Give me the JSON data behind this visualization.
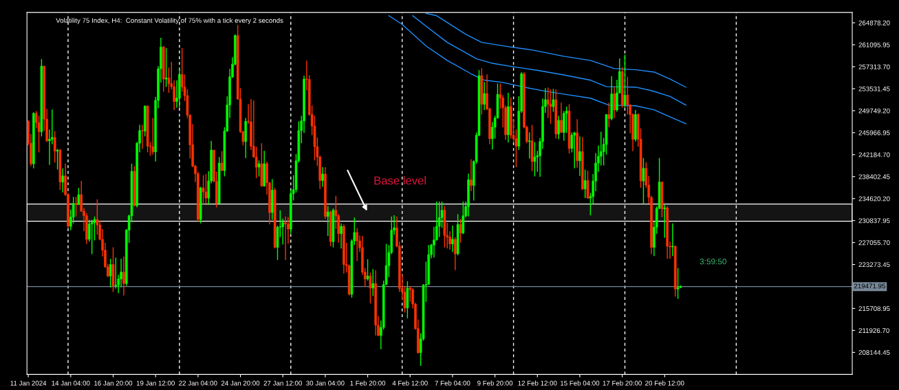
{
  "chart_data": {
    "type": "candlestick",
    "title": "Volatility 75 Index, H4:  Constant Volatility of 75% with a tick every 2 seconds",
    "colors": [
      "#ff3300",
      "#ff3300",
      "#00ff00",
      "#ff3300",
      "#ff3300",
      "#00ff00",
      "#ff3300",
      "#ff3300",
      "#00ff00",
      "#00ff00",
      "#ff3300",
      "#00ff00",
      "#ff3300",
      "#00ff00",
      "#ff3300",
      "#ff3300",
      "#00ff00",
      "#00ff00",
      "#ff3300",
      "#00ff00",
      "#ff3300",
      "#ff3300",
      "#ff3300",
      "#00ff00",
      "#00ff00",
      "#00ff00",
      "#ff3300",
      "#ff3300",
      "#ff3300",
      "#ff3300",
      "#ff3300",
      "#00ff00",
      "#ff3300",
      "#00ff00",
      "#00ff00",
      "#00ff00",
      "#ff3300",
      "#00ff00",
      "#00ff00",
      "#00ff00",
      "#ff3300",
      "#00ff00",
      "#00ff00",
      "#ff3300",
      "#00ff00",
      "#ff3300",
      "#ff3300",
      "#ff3300",
      "#00ff00",
      "#00ff00",
      "#00ff00",
      "#ff3300",
      "#00ff00",
      "#ff3300",
      "#ff3300",
      "#ff3300",
      "#00ff00",
      "#00ff00",
      "#ff3300",
      "#ff3300",
      "#ff3300",
      "#ff3300",
      "#ff3300",
      "#ff3300",
      "#ff3300",
      "#00ff00",
      "#ff3300",
      "#ff3300",
      "#00ff00",
      "#00ff00",
      "#ff3300",
      "#ff3300",
      "#00ff00",
      "#ff3300",
      "#00ff00",
      "#00ff00",
      "#00ff00",
      "#00ff00",
      "#00ff00",
      "#ff3300",
      "#ff3300",
      "#ff3300",
      "#00ff00",
      "#ff3300",
      "#ff3300",
      "#ff3300",
      "#ff3300",
      "#00ff00",
      "#ff3300",
      "#00ff00",
      "#ff3300",
      "#ff3300",
      "#00ff00",
      "#ff3300",
      "#00ff00",
      "#00ff00",
      "#00ff00",
      "#ff3300",
      "#ff3300",
      "#00ff00",
      "#00ff00",
      "#00ff00",
      "#00ff00",
      "#00ff00",
      "#00ff00",
      "#ff3300",
      "#ff3300",
      "#ff3300",
      "#ff3300",
      "#ff3300",
      "#ff3300",
      "#00ff00",
      "#ff3300",
      "#00ff00",
      "#ff3300",
      "#00ff00",
      "#ff3300",
      "#ff3300",
      "#00ff00",
      "#ff3300",
      "#ff3300",
      "#ff3300",
      "#00ff00",
      "#00ff00",
      "#ff3300",
      "#ff3300",
      "#ff3300",
      "#ff3300",
      "#00ff00",
      "#ff3300",
      "#00ff00",
      "#ff3300",
      "#ff3300",
      "#00ff00",
      "#00ff00",
      "#00ff00",
      "#00ff00",
      "#00ff00",
      "#00ff00",
      "#ff3300",
      "#ff3300",
      "#ff3300",
      "#ff3300",
      "#00ff00",
      "#ff3300",
      "#ff3300",
      "#ff3300",
      "#ff3300",
      "#00ff00",
      "#00ff00",
      "#00ff00",
      "#00ff00",
      "#00ff00",
      "#00ff00",
      "#00ff00",
      "#00ff00",
      "#00ff00",
      "#ff3300",
      "#ff3300",
      "#ff3300",
      "#00ff00",
      "#ff3300",
      "#00ff00",
      "#ff3300",
      "#00ff00",
      "#00ff00",
      "#00ff00",
      "#ff3300",
      "#00ff00",
      "#00ff00",
      "#00ff00",
      "#ff3300",
      "#00ff00",
      "#ff3300",
      "#ff3300",
      "#00ff00",
      "#00ff00",
      "#00ff00",
      "#ff3300",
      "#ff3300",
      "#ff3300",
      "#00ff00",
      "#ff3300",
      "#ff3300",
      "#ff3300",
      "#00ff00",
      "#00ff00",
      "#ff3300",
      "#ff3300",
      "#00ff00",
      "#ff3300",
      "#00ff00",
      "#00ff00",
      "#00ff00",
      "#00ff00",
      "#00ff00",
      "#ff3300",
      "#ff3300",
      "#00ff00",
      "#ff3300",
      "#00ff00",
      "#ff3300",
      "#00ff00",
      "#00ff00",
      "#ff3300",
      "#00ff00",
      "#00ff00",
      "#ff3300",
      "#00ff00",
      "#ff3300",
      "#00ff00",
      "#ff3300",
      "#00ff00",
      "#00ff00",
      "#00ff00",
      "#00ff00",
      "#00ff00",
      "#00ff00",
      "#00ff00",
      "#ff3300",
      "#00ff00",
      "#ff3300",
      "#00ff00",
      "#00ff00",
      "#ff3300",
      "#00ff00",
      "#ff3300",
      "#ff3300",
      "#ff3300",
      "#00ff00",
      "#ff3300",
      "#ff3300",
      "#00ff00",
      "#ff3300",
      "#ff3300",
      "#ff3300",
      "#00ff00",
      "#00ff00",
      "#00ff00",
      "#ff3300",
      "#00ff00",
      "#ff3300",
      "#ff3300",
      "#00ff00",
      "#ff3300",
      "#00ff00",
      "#00ff00"
    ],
    "x": [
      "2024-01-11T12:00",
      "2024-01-11T16:00",
      "2024-01-11T20:00",
      "2024-01-12T00:00",
      "2024-01-12T04:00",
      "2024-01-12T08:00",
      "2024-01-12T12:00",
      "2024-01-12T16:00",
      "2024-01-12T20:00",
      "2024-01-13T00:00",
      "2024-01-13T04:00",
      "2024-01-13T08:00",
      "2024-01-13T12:00",
      "2024-01-13T16:00",
      "2024-01-13T20:00",
      "2024-01-14T00:00",
      "2024-01-14T04:00",
      "2024-01-14T08:00",
      "2024-01-14T12:00",
      "2024-01-14T16:00",
      "2024-01-14T20:00",
      "2024-01-15T00:00",
      "2024-01-15T04:00",
      "2024-01-15T08:00",
      "2024-01-15T12:00",
      "2024-01-15T16:00",
      "2024-01-15T20:00",
      "2024-01-16T00:00",
      "2024-01-16T04:00",
      "2024-01-16T08:00",
      "2024-01-16T12:00",
      "2024-01-16T16:00",
      "2024-01-16T20:00",
      "2024-01-17T00:00",
      "2024-01-17T04:00",
      "2024-01-17T08:00",
      "2024-01-17T12:00",
      "2024-01-17T16:00",
      "2024-01-17T20:00",
      "2024-01-18T00:00",
      "2024-01-18T04:00",
      "2024-01-18T08:00",
      "2024-01-18T12:00",
      "2024-01-18T16:00",
      "2024-01-18T20:00",
      "2024-01-19T00:00",
      "2024-01-19T04:00",
      "2024-01-19T08:00",
      "2024-01-19T12:00",
      "2024-01-19T16:00",
      "2024-01-19T20:00",
      "2024-01-20T00:00",
      "2024-01-20T04:00",
      "2024-01-20T08:00",
      "2024-01-20T12:00",
      "2024-01-20T16:00",
      "2024-01-20T20:00",
      "2024-01-21T00:00",
      "2024-01-21T04:00",
      "2024-01-21T08:00",
      "2024-01-21T12:00",
      "2024-01-21T16:00",
      "2024-01-21T20:00",
      "2024-01-22T00:00",
      "2024-01-22T04:00",
      "2024-01-22T08:00",
      "2024-01-22T12:00",
      "2024-01-22T16:00",
      "2024-01-22T20:00",
      "2024-01-23T00:00",
      "2024-01-23T04:00",
      "2024-01-23T08:00",
      "2024-01-23T12:00",
      "2024-01-23T16:00",
      "2024-01-23T20:00",
      "2024-01-24T00:00",
      "2024-01-24T04:00",
      "2024-01-24T08:00",
      "2024-01-24T12:00",
      "2024-01-24T16:00",
      "2024-01-24T20:00",
      "2024-01-25T00:00",
      "2024-01-25T04:00",
      "2024-01-25T08:00",
      "2024-01-25T12:00",
      "2024-01-25T16:00",
      "2024-01-25T20:00",
      "2024-01-26T00:00",
      "2024-01-26T04:00",
      "2024-01-26T08:00",
      "2024-01-26T12:00",
      "2024-01-26T16:00",
      "2024-01-26T20:00",
      "2024-01-27T00:00",
      "2024-01-27T04:00",
      "2024-01-27T08:00",
      "2024-01-27T12:00",
      "2024-01-27T16:00",
      "2024-01-27T20:00",
      "2024-01-28T00:00",
      "2024-01-28T04:00",
      "2024-01-28T08:00",
      "2024-01-28T12:00",
      "2024-01-28T16:00",
      "2024-01-28T20:00",
      "2024-01-29T00:00",
      "2024-01-29T04:00",
      "2024-01-29T08:00",
      "2024-01-29T12:00",
      "2024-01-29T16:00",
      "2024-01-29T20:00",
      "2024-01-30T00:00",
      "2024-01-30T04:00",
      "2024-01-30T08:00",
      "2024-01-30T12:00",
      "2024-01-30T16:00",
      "2024-01-30T20:00",
      "2024-01-31T00:00",
      "2024-01-31T04:00",
      "2024-01-31T08:00",
      "2024-01-31T12:00",
      "2024-01-31T16:00",
      "2024-01-31T20:00",
      "2024-02-01T00:00",
      "2024-02-01T04:00",
      "2024-02-01T08:00",
      "2024-02-01T12:00",
      "2024-02-01T16:00",
      "2024-02-01T20:00",
      "2024-02-02T00:00",
      "2024-02-02T04:00",
      "2024-02-02T08:00",
      "2024-02-02T12:00",
      "2024-02-02T16:00",
      "2024-02-02T20:00",
      "2024-02-03T00:00",
      "2024-02-03T04:00",
      "2024-02-03T08:00",
      "2024-02-03T12:00",
      "2024-02-03T16:00",
      "2024-02-03T20:00",
      "2024-02-04T00:00",
      "2024-02-04T04:00",
      "2024-02-04T08:00",
      "2024-02-04T12:00",
      "2024-02-04T16:00",
      "2024-02-04T20:00",
      "2024-02-05T00:00",
      "2024-02-05T04:00",
      "2024-02-05T08:00",
      "2024-02-05T12:00",
      "2024-02-05T16:00",
      "2024-02-05T20:00",
      "2024-02-06T00:00",
      "2024-02-06T04:00",
      "2024-02-06T08:00",
      "2024-02-06T12:00",
      "2024-02-06T16:00",
      "2024-02-06T20:00",
      "2024-02-07T00:00",
      "2024-02-07T04:00",
      "2024-02-07T08:00",
      "2024-02-07T12:00",
      "2024-02-07T16:00",
      "2024-02-07T20:00",
      "2024-02-08T00:00",
      "2024-02-08T04:00",
      "2024-02-08T08:00",
      "2024-02-08T12:00",
      "2024-02-08T16:00",
      "2024-02-08T20:00",
      "2024-02-09T00:00",
      "2024-02-09T04:00",
      "2024-02-09T08:00",
      "2024-02-09T12:00",
      "2024-02-09T16:00",
      "2024-02-09T20:00",
      "2024-02-10T00:00",
      "2024-02-10T04:00",
      "2024-02-10T08:00",
      "2024-02-10T12:00",
      "2024-02-10T16:00",
      "2024-02-10T20:00",
      "2024-02-11T00:00",
      "2024-02-11T04:00",
      "2024-02-11T08:00",
      "2024-02-11T12:00",
      "2024-02-11T16:00",
      "2024-02-11T20:00",
      "2024-02-12T00:00",
      "2024-02-12T04:00",
      "2024-02-12T08:00",
      "2024-02-12T12:00",
      "2024-02-12T16:00",
      "2024-02-12T20:00",
      "2024-02-13T00:00",
      "2024-02-13T04:00",
      "2024-02-13T08:00",
      "2024-02-13T12:00",
      "2024-02-13T16:00",
      "2024-02-13T20:00",
      "2024-02-14T00:00",
      "2024-02-14T04:00",
      "2024-02-14T08:00",
      "2024-02-14T12:00",
      "2024-02-14T16:00",
      "2024-02-14T20:00",
      "2024-02-15T00:00",
      "2024-02-15T04:00",
      "2024-02-15T08:00",
      "2024-02-15T12:00",
      "2024-02-15T16:00",
      "2024-02-15T20:00",
      "2024-02-16T00:00",
      "2024-02-16T04:00",
      "2024-02-16T08:00",
      "2024-02-16T12:00",
      "2024-02-16T16:00",
      "2024-02-16T20:00",
      "2024-02-17T00:00",
      "2024-02-17T04:00",
      "2024-02-17T08:00",
      "2024-02-17T12:00",
      "2024-02-17T16:00",
      "2024-02-17T20:00",
      "2024-02-18T00:00",
      "2024-02-18T04:00",
      "2024-02-18T08:00",
      "2024-02-18T12:00",
      "2024-02-18T16:00",
      "2024-02-18T20:00",
      "2024-02-19T00:00",
      "2024-02-19T04:00",
      "2024-02-19T08:00",
      "2024-02-19T12:00",
      "2024-02-19T16:00",
      "2024-02-19T20:00",
      "2024-02-20T00:00",
      "2024-02-20T04:00",
      "2024-02-20T08:00",
      "2024-02-20T12:00",
      "2024-02-20T16:00",
      "2024-02-20T20:00",
      "2024-02-21T00:00",
      "2024-02-21T04:00",
      "2024-02-21T08:00",
      "2024-02-21T12:00"
    ],
    "ohlc": [
      [
        247900,
        248090,
        243760,
        244150
      ],
      [
        244150,
        245730,
        240210,
        240610
      ],
      [
        240610,
        249470,
        239820,
        249280
      ],
      [
        249280,
        249670,
        246720,
        247700
      ],
      [
        247700,
        248880,
        242580,
        246120
      ],
      [
        246120,
        258610,
        245340,
        257430
      ],
      [
        257430,
        257430,
        246320,
        248290
      ],
      [
        248290,
        250060,
        244350,
        244550
      ],
      [
        244550,
        246520,
        240410,
        244820
      ],
      [
        244820,
        249950,
        243960,
        245140
      ],
      [
        245140,
        246240,
        240800,
        242780
      ],
      [
        242780,
        243170,
        239620,
        242970
      ],
      [
        242970,
        243170,
        236080,
        237460
      ],
      [
        237460,
        239820,
        235680,
        238520
      ],
      [
        238520,
        240610,
        235090,
        235290
      ],
      [
        235290,
        235490,
        229580,
        229850
      ],
      [
        229850,
        232730,
        229180,
        231430
      ],
      [
        231430,
        234900,
        230360,
        233790
      ],
      [
        233790,
        234900,
        231550,
        233630
      ],
      [
        233630,
        236470,
        233520,
        235290
      ],
      [
        235290,
        237650,
        232330,
        232450
      ],
      [
        232450,
        233000,
        228990,
        231660
      ],
      [
        231660,
        232140,
        226820,
        227610
      ],
      [
        227610,
        230960,
        227210,
        230250
      ],
      [
        230250,
        230960,
        225050,
        230480
      ],
      [
        230480,
        231550,
        227410,
        231030
      ],
      [
        231030,
        234500,
        228390,
        230090
      ],
      [
        230090,
        230760,
        227410,
        227610
      ],
      [
        227610,
        229380,
        224650,
        225750
      ],
      [
        225750,
        227020,
        222680,
        222880
      ],
      [
        222880,
        223390,
        221100,
        221300
      ],
      [
        221300,
        224260,
        219330,
        223270
      ],
      [
        223270,
        226230,
        218540,
        219610
      ],
      [
        219610,
        224450,
        219140,
        219730
      ],
      [
        219730,
        221500,
        218350,
        220790
      ],
      [
        220790,
        224260,
        219330,
        221970
      ],
      [
        221970,
        224650,
        217950,
        220000
      ],
      [
        220000,
        229380,
        219610,
        229180
      ],
      [
        229180,
        231820,
        227020,
        231660
      ],
      [
        231660,
        240610,
        230560,
        239310
      ],
      [
        239310,
        240210,
        233320,
        233400
      ],
      [
        233400,
        244350,
        233120,
        244150
      ],
      [
        244150,
        247310,
        242580,
        246320
      ],
      [
        246320,
        247310,
        243170,
        246240
      ],
      [
        246240,
        250660,
        245340,
        250540
      ],
      [
        250540,
        250660,
        242580,
        243640
      ],
      [
        243640,
        244350,
        241990,
        243560
      ],
      [
        243560,
        248490,
        242180,
        242660
      ],
      [
        242660,
        252150,
        241000,
        251520
      ],
      [
        251520,
        257430,
        250180,
        256960
      ],
      [
        256960,
        262280,
        254600,
        260700
      ],
      [
        260700,
        260900,
        253020,
        255190
      ],
      [
        255190,
        260510,
        253810,
        255380
      ],
      [
        255380,
        257160,
        252820,
        254400
      ],
      [
        254400,
        258140,
        253410,
        253890
      ],
      [
        253890,
        254990,
        249870,
        251330
      ],
      [
        251330,
        254990,
        250260,
        251920
      ],
      [
        251920,
        257160,
        250260,
        255970
      ],
      [
        255970,
        260510,
        253020,
        253810
      ],
      [
        253810,
        255970,
        251440,
        252350
      ],
      [
        252350,
        253410,
        248490,
        249000
      ],
      [
        249000,
        249080,
        241510,
        243880
      ],
      [
        243880,
        247420,
        240020,
        240210
      ],
      [
        240210,
        240410,
        237460,
        238910
      ],
      [
        238910,
        239230,
        230560,
        231030
      ],
      [
        231030,
        236670,
        230360,
        236470
      ],
      [
        236470,
        238640,
        233520,
        235760
      ],
      [
        235760,
        238840,
        233710,
        234700
      ],
      [
        234700,
        239310,
        233520,
        237650
      ],
      [
        237650,
        244550,
        237260,
        242970
      ],
      [
        242970,
        242970,
        237460,
        237570
      ],
      [
        237570,
        239230,
        233120,
        233790
      ],
      [
        233790,
        241790,
        233520,
        240730
      ],
      [
        240730,
        242780,
        239310,
        239430
      ],
      [
        239430,
        246910,
        238440,
        246240
      ],
      [
        246240,
        252230,
        246120,
        250730
      ],
      [
        250730,
        256960,
        248490,
        255580
      ],
      [
        255580,
        258930,
        255380,
        257750
      ],
      [
        257750,
        262870,
        257550,
        262670
      ],
      [
        262670,
        264520,
        251640,
        251760
      ],
      [
        251760,
        253610,
        245930,
        246120
      ],
      [
        246120,
        246320,
        243760,
        244430
      ],
      [
        244430,
        248490,
        241590,
        247900
      ],
      [
        247900,
        250850,
        247500,
        247820
      ],
      [
        247820,
        251760,
        242970,
        243640
      ],
      [
        243640,
        251520,
        241670,
        241790
      ],
      [
        241790,
        243560,
        238130,
        240020
      ],
      [
        240020,
        241200,
        238440,
        240610
      ],
      [
        240610,
        244150,
        236670,
        236790
      ],
      [
        236790,
        242850,
        236670,
        240610
      ],
      [
        240610,
        241000,
        235290,
        237340
      ],
      [
        237340,
        237460,
        230170,
        232220
      ],
      [
        232220,
        237970,
        230960,
        236080
      ],
      [
        236080,
        236470,
        226030,
        226230
      ],
      [
        226230,
        229970,
        224060,
        229690
      ],
      [
        229690,
        232610,
        228000,
        229770
      ],
      [
        229770,
        231150,
        226700,
        230480
      ],
      [
        230480,
        231550,
        224060,
        230250
      ],
      [
        230250,
        231430,
        226820,
        229380
      ],
      [
        229380,
        236080,
        228590,
        235490
      ],
      [
        235490,
        238640,
        234300,
        236160
      ],
      [
        236160,
        242300,
        235680,
        241120
      ],
      [
        241120,
        247900,
        240800,
        246320
      ],
      [
        246320,
        248880,
        244150,
        247980
      ],
      [
        247980,
        255780,
        245930,
        255190
      ],
      [
        255190,
        258340,
        253220,
        255110
      ],
      [
        255110,
        255860,
        248880,
        249080
      ],
      [
        249080,
        250660,
        245530,
        247110
      ],
      [
        247110,
        248880,
        241200,
        243560
      ],
      [
        243560,
        245140,
        240210,
        241790
      ],
      [
        241790,
        241990,
        236270,
        237730
      ],
      [
        237730,
        240020,
        236670,
        238840
      ],
      [
        238840,
        240020,
        231150,
        231550
      ],
      [
        231550,
        233320,
        228200,
        232330
      ],
      [
        232330,
        232530,
        226420,
        227210
      ],
      [
        227210,
        232930,
        226230,
        232610
      ],
      [
        232610,
        235090,
        229380,
        231660
      ],
      [
        231660,
        231940,
        227020,
        228590
      ],
      [
        228590,
        230360,
        226030,
        229850
      ],
      [
        229850,
        230170,
        221700,
        223270
      ],
      [
        223270,
        227020,
        221890,
        223080
      ],
      [
        223080,
        223270,
        217950,
        218150
      ],
      [
        218150,
        227610,
        217560,
        227330
      ],
      [
        227330,
        231350,
        226620,
        228790
      ],
      [
        228790,
        229580,
        223860,
        227330
      ],
      [
        227330,
        228280,
        225440,
        226150
      ],
      [
        226150,
        228200,
        221500,
        221970
      ],
      [
        221970,
        222680,
        219530,
        220790
      ],
      [
        220790,
        224180,
        220510,
        221300
      ],
      [
        221300,
        221890,
        216570,
        219210
      ],
      [
        219210,
        222480,
        217870,
        220000
      ],
      [
        220000,
        222290,
        211060,
        212830
      ],
      [
        212830,
        214410,
        210940,
        211060
      ],
      [
        211060,
        213620,
        208690,
        212440
      ],
      [
        212440,
        220510,
        212040,
        219840
      ],
      [
        219840,
        226820,
        219730,
        223080
      ],
      [
        223080,
        226620,
        221100,
        225360
      ],
      [
        225360,
        231550,
        225050,
        229180
      ],
      [
        229180,
        231740,
        228390,
        229580
      ],
      [
        229580,
        231550,
        226230,
        226420
      ],
      [
        226420,
        227210,
        218540,
        219140
      ],
      [
        219140,
        221500,
        217170,
        218540
      ],
      [
        218540,
        219530,
        215000,
        215790
      ],
      [
        215790,
        220400,
        214010,
        219210
      ],
      [
        219210,
        219530,
        216850,
        218940
      ],
      [
        218940,
        219210,
        215670,
        216460
      ],
      [
        216460,
        216690,
        212040,
        212240
      ],
      [
        212240,
        213820,
        207910,
        208100
      ],
      [
        208100,
        211450,
        205820,
        210470
      ],
      [
        210470,
        219920,
        210150,
        219730
      ],
      [
        219730,
        223780,
        216850,
        219840
      ],
      [
        219840,
        226620,
        219840,
        224970
      ],
      [
        224970,
        226820,
        224340,
        226620
      ],
      [
        226620,
        229770,
        224450,
        227490
      ],
      [
        227490,
        234110,
        227410,
        229850
      ],
      [
        229850,
        234110,
        228000,
        231350
      ],
      [
        231350,
        234110,
        229580,
        232610
      ],
      [
        232610,
        233320,
        226230,
        228280
      ],
      [
        228280,
        230480,
        226030,
        228000
      ],
      [
        228000,
        228990,
        225830,
        226820
      ],
      [
        226820,
        229970,
        225440,
        227610
      ],
      [
        227610,
        228000,
        222290,
        225120
      ],
      [
        225120,
        231940,
        224850,
        230170
      ],
      [
        230170,
        231150,
        227020,
        228670
      ],
      [
        228670,
        234110,
        228510,
        231660
      ],
      [
        231660,
        234110,
        231350,
        233240
      ],
      [
        233240,
        238910,
        231550,
        237850
      ],
      [
        237850,
        241400,
        235880,
        236870
      ],
      [
        236870,
        241200,
        234300,
        241000
      ],
      [
        241000,
        246010,
        240610,
        245530
      ],
      [
        245530,
        256760,
        245340,
        255780
      ],
      [
        255780,
        257040,
        249080,
        250850
      ],
      [
        250850,
        254670,
        249870,
        252700
      ],
      [
        252700,
        255970,
        249870,
        250060
      ],
      [
        250060,
        250260,
        243960,
        244940
      ],
      [
        244940,
        247820,
        243090,
        246910
      ],
      [
        246910,
        248880,
        244940,
        248490
      ],
      [
        248490,
        254400,
        248370,
        252550
      ],
      [
        252550,
        254400,
        250060,
        251920
      ],
      [
        251920,
        252430,
        246910,
        250260
      ],
      [
        250260,
        250660,
        244750,
        245610
      ],
      [
        245610,
        252820,
        244270,
        250460
      ],
      [
        250460,
        252030,
        244940,
        245530
      ],
      [
        245530,
        248090,
        244350,
        244940
      ],
      [
        244940,
        246520,
        240020,
        243640
      ],
      [
        243640,
        252230,
        242970,
        249670
      ],
      [
        249670,
        256370,
        249390,
        256090
      ],
      [
        256090,
        256370,
        246720,
        246910
      ],
      [
        246910,
        247190,
        244150,
        244430
      ],
      [
        244430,
        246010,
        241510,
        244550
      ],
      [
        244550,
        247310,
        239310,
        241000
      ],
      [
        241000,
        244350,
        238440,
        241790
      ],
      [
        241790,
        242850,
        239230,
        241990
      ],
      [
        241990,
        245060,
        238360,
        244430
      ],
      [
        244430,
        251840,
        243170,
        250460
      ],
      [
        250460,
        253610,
        249390,
        251640
      ],
      [
        251640,
        253730,
        248490,
        250850
      ],
      [
        250850,
        253410,
        247500,
        250460
      ],
      [
        250460,
        253490,
        249550,
        251640
      ],
      [
        251640,
        253410,
        244940,
        245730
      ],
      [
        245730,
        248880,
        244820,
        248090
      ],
      [
        248090,
        251130,
        245930,
        246010
      ],
      [
        246010,
        249670,
        244550,
        249280
      ],
      [
        249280,
        250460,
        245930,
        249670
      ],
      [
        249670,
        250850,
        242380,
        243250
      ],
      [
        243250,
        246010,
        242580,
        245530
      ],
      [
        245530,
        246120,
        239820,
        245930
      ],
      [
        245930,
        248290,
        239940,
        241120
      ],
      [
        241120,
        245340,
        238520,
        242700
      ],
      [
        242700,
        245220,
        236080,
        236270
      ],
      [
        236270,
        239620,
        234700,
        237730
      ],
      [
        237730,
        239430,
        234580,
        234700
      ],
      [
        234700,
        235600,
        231740,
        234970
      ],
      [
        234970,
        238840,
        233710,
        237650
      ],
      [
        237650,
        242460,
        235880,
        240730
      ],
      [
        240730,
        243760,
        239230,
        241910
      ],
      [
        241910,
        246120,
        240330,
        242700
      ],
      [
        242700,
        245060,
        240330,
        243960
      ],
      [
        243960,
        249160,
        242180,
        249080
      ],
      [
        249080,
        251130,
        246910,
        248370
      ],
      [
        248370,
        255700,
        248090,
        252630
      ],
      [
        252630,
        253890,
        248490,
        249870
      ],
      [
        249870,
        255070,
        249550,
        252820
      ],
      [
        252820,
        258730,
        252700,
        256490
      ],
      [
        256490,
        257270,
        250260,
        250730
      ],
      [
        250730,
        259400,
        250260,
        252430
      ],
      [
        252430,
        255580,
        249080,
        250730
      ],
      [
        250730,
        250850,
        245850,
        249080
      ],
      [
        249080,
        249280,
        242780,
        244820
      ],
      [
        244820,
        249870,
        244430,
        249080
      ],
      [
        249080,
        249280,
        243560,
        244820
      ],
      [
        244820,
        246720,
        236470,
        237650
      ],
      [
        237650,
        241590,
        233790,
        239820
      ],
      [
        239820,
        240880,
        236470,
        236940
      ],
      [
        236940,
        238520,
        233790,
        234820
      ],
      [
        234820,
        235090,
        225050,
        226230
      ],
      [
        226230,
        230640,
        224730,
        229690
      ],
      [
        229690,
        233240,
        228590,
        232930
      ],
      [
        232930,
        241590,
        232850,
        237460
      ],
      [
        237460,
        237570,
        231430,
        232850
      ],
      [
        232850,
        233520,
        227880,
        233000
      ],
      [
        233000,
        233320,
        224260,
        226420
      ],
      [
        226420,
        227210,
        224260,
        226310
      ],
      [
        226310,
        230360,
        224730,
        226420
      ],
      [
        226420,
        226540,
        217760,
        219060
      ],
      [
        219060,
        222680,
        217360,
        219300
      ],
      [
        219300,
        219700,
        219250,
        219471.95
      ]
    ],
    "series": [
      {
        "type": "line",
        "color": "#1e90ff",
        "x": [
          "2024-02-05T12:00",
          "2024-02-06T04:00",
          "2024-02-08T00:00",
          "2024-02-09T00:00",
          "2024-02-10T20:00",
          "2024-02-12T04:00",
          "2024-02-14T04:00",
          "2024-02-15T20:00",
          "2024-02-17T08:00",
          "2024-02-18T16:00",
          "2024-02-19T20:00",
          "2024-02-20T20:00",
          "2024-02-21T20:00"
        ],
        "values": [
          266500,
          266100,
          262900,
          261500,
          260700,
          260200,
          259100,
          258400,
          257000,
          256800,
          256400,
          255200,
          253800
        ]
      },
      {
        "type": "line",
        "color": "#1e90ff",
        "x": [
          "2024-02-04T16:00",
          "2024-02-05T12:00",
          "2024-02-06T20:00",
          "2024-02-08T16:00",
          "2024-02-09T16:00",
          "2024-02-11T00:00",
          "2024-02-12T12:00",
          "2024-02-14T04:00",
          "2024-02-15T20:00",
          "2024-02-16T20:00",
          "2024-02-18T16:00",
          "2024-02-19T16:00",
          "2024-02-20T20:00",
          "2024-02-21T20:00"
        ],
        "values": [
          266100,
          264300,
          261500,
          258700,
          257900,
          257300,
          256700,
          255900,
          255000,
          253900,
          253800,
          253200,
          252200,
          250700
        ]
      },
      {
        "type": "line",
        "color": "#1e90ff",
        "x": [
          "2024-02-03T04:00",
          "2024-02-04T00:00",
          "2024-02-05T12:00",
          "2024-02-06T20:00",
          "2024-02-08T08:00",
          "2024-02-09T04:00",
          "2024-02-10T08:00",
          "2024-02-11T16:00",
          "2024-02-13T00:00",
          "2024-02-14T04:00",
          "2024-02-15T20:00",
          "2024-02-17T00:00",
          "2024-02-18T16:00",
          "2024-02-19T20:00",
          "2024-02-20T20:00",
          "2024-02-21T20:00"
        ],
        "values": [
          266100,
          264600,
          260900,
          258400,
          256100,
          255000,
          254600,
          253800,
          253100,
          252600,
          251900,
          250700,
          250600,
          249900,
          248700,
          247500
        ]
      }
    ],
    "xlim": [
      "2024-01-11T10:00",
      "2024-03-03T07:00"
    ],
    "ylim": [
      204360,
      266650
    ],
    "xticks": [
      {
        "value": "2024-01-11T12:00",
        "label": "11 Jan 2024"
      },
      {
        "value": "2024-01-14T04:00",
        "label": "14 Jan 04:00"
      },
      {
        "value": "2024-01-16T20:00",
        "label": "16 Jan 20:00"
      },
      {
        "value": "2024-01-19T12:00",
        "label": "19 Jan 12:00"
      },
      {
        "value": "2024-01-22T04:00",
        "label": "22 Jan 04:00"
      },
      {
        "value": "2024-01-24T20:00",
        "label": "24 Jan 20:00"
      },
      {
        "value": "2024-01-27T12:00",
        "label": "27 Jan 12:00"
      },
      {
        "value": "2024-01-30T04:00",
        "label": "30 Jan 04:00"
      },
      {
        "value": "2024-02-01T20:00",
        "label": "1 Feb 20:00"
      },
      {
        "value": "2024-02-04T12:00",
        "label": "4 Feb 12:00"
      },
      {
        "value": "2024-02-07T04:00",
        "label": "7 Feb 04:00"
      },
      {
        "value": "2024-02-09T20:00",
        "label": "9 Feb 20:00"
      },
      {
        "value": "2024-02-12T12:00",
        "label": "12 Feb 12:00"
      },
      {
        "value": "2024-02-15T04:00",
        "label": "15 Feb 04:00"
      },
      {
        "value": "2024-02-17T20:00",
        "label": "17 Feb 20:00"
      },
      {
        "value": "2024-02-20T12:00",
        "label": "20 Feb 12:00"
      }
    ],
    "yticks": [
      {
        "value": 264878.2,
        "label": "264878.20"
      },
      {
        "value": 261095.95,
        "label": "261095.95"
      },
      {
        "value": 257313.7,
        "label": "257313.70"
      },
      {
        "value": 253531.45,
        "label": "253531.45"
      },
      {
        "value": 249749.2,
        "label": "249749.20"
      },
      {
        "value": 245966.95,
        "label": "245966.95"
      },
      {
        "value": 242184.7,
        "label": "242184.70"
      },
      {
        "value": 238402.45,
        "label": "238402.45"
      },
      {
        "value": 234620.2,
        "label": "234620.20"
      },
      {
        "value": 230837.95,
        "label": "230837.95"
      },
      {
        "value": 227055.7,
        "label": "227055.70"
      },
      {
        "value": 223273.45,
        "label": "223273.45"
      },
      {
        "value": 215708.95,
        "label": "215708.95"
      },
      {
        "value": 211926.7,
        "label": "211926.70"
      },
      {
        "value": 208144.45,
        "label": "208144.45"
      }
    ],
    "ref_lines": [
      {
        "axis": "x",
        "value": "2024-01-14T00:00",
        "color": "#ffffff",
        "line_style": "dashed"
      },
      {
        "axis": "x",
        "value": "2024-01-21T00:00",
        "color": "#ffffff",
        "line_style": "dashed"
      },
      {
        "axis": "x",
        "value": "2024-01-28T00:00",
        "color": "#ffffff",
        "line_style": "dashed"
      },
      {
        "axis": "x",
        "value": "2024-02-04T00:00",
        "color": "#ffffff",
        "line_style": "dashed"
      },
      {
        "axis": "x",
        "value": "2024-02-11T00:00",
        "color": "#ffffff",
        "line_style": "dashed"
      },
      {
        "axis": "x",
        "value": "2024-02-18T00:00",
        "color": "#ffffff",
        "line_style": "dashed"
      },
      {
        "axis": "x",
        "value": "2024-02-25T00:00",
        "color": "#ffffff",
        "line_style": "dashed"
      },
      {
        "axis": "y",
        "value": 219471.95,
        "label": "219471.95",
        "color": "#778899",
        "line_style": "solid"
      }
    ],
    "bands": [
      {
        "axis": "y",
        "from": 230720,
        "to": 233680,
        "label": "Base level",
        "color": "#ffffff"
      }
    ],
    "annotations": [
      "3:59:50"
    ]
  }
}
